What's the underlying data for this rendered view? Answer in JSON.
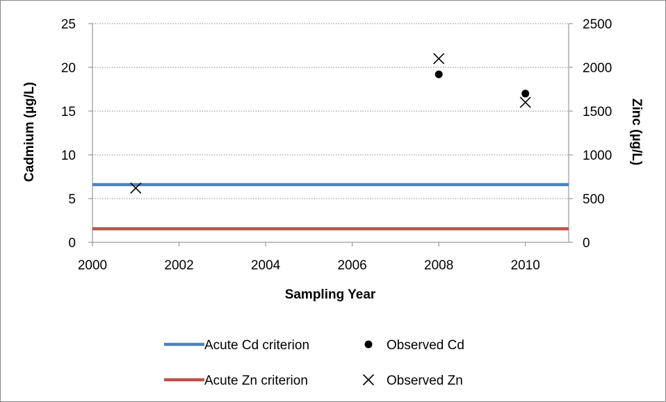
{
  "chart_data": {
    "type": "line+scatter",
    "title": "",
    "xlabel": "Sampling Year",
    "ylabel_left": "Cadmium (µg/L)",
    "ylabel_right": "Zinc (µg/L)",
    "xlim": [
      2000,
      2011
    ],
    "xticks": [
      2000,
      2002,
      2004,
      2006,
      2008,
      2010
    ],
    "ylim_left": [
      0,
      25
    ],
    "yticks_left": [
      0,
      5,
      10,
      15,
      20,
      25
    ],
    "ylim_right": [
      0,
      2500
    ],
    "yticks_right": [
      0,
      500,
      1000,
      1500,
      2000,
      2500
    ],
    "grid": "horizontal dotted",
    "legend_position": "bottom",
    "series": [
      {
        "name": "Acute Cd criterion",
        "kind": "hline",
        "axis": "left",
        "y": 6.6,
        "color": "#4f81bd"
      },
      {
        "name": "Acute Zn criterion",
        "kind": "hline",
        "axis": "left",
        "y": 1.55,
        "color": "#c0504d"
      },
      {
        "name": "Observed Cd",
        "kind": "scatter",
        "marker": "dot",
        "axis": "left",
        "color": "#000000",
        "points": [
          {
            "x": 2008,
            "y": 19.2
          },
          {
            "x": 2010,
            "y": 17.0
          }
        ]
      },
      {
        "name": "Observed Zn",
        "kind": "scatter",
        "marker": "x",
        "axis": "right",
        "color": "#000000",
        "points": [
          {
            "x": 2001,
            "y": 620
          },
          {
            "x": 2008,
            "y": 2100
          },
          {
            "x": 2010,
            "y": 1600
          }
        ]
      }
    ]
  }
}
